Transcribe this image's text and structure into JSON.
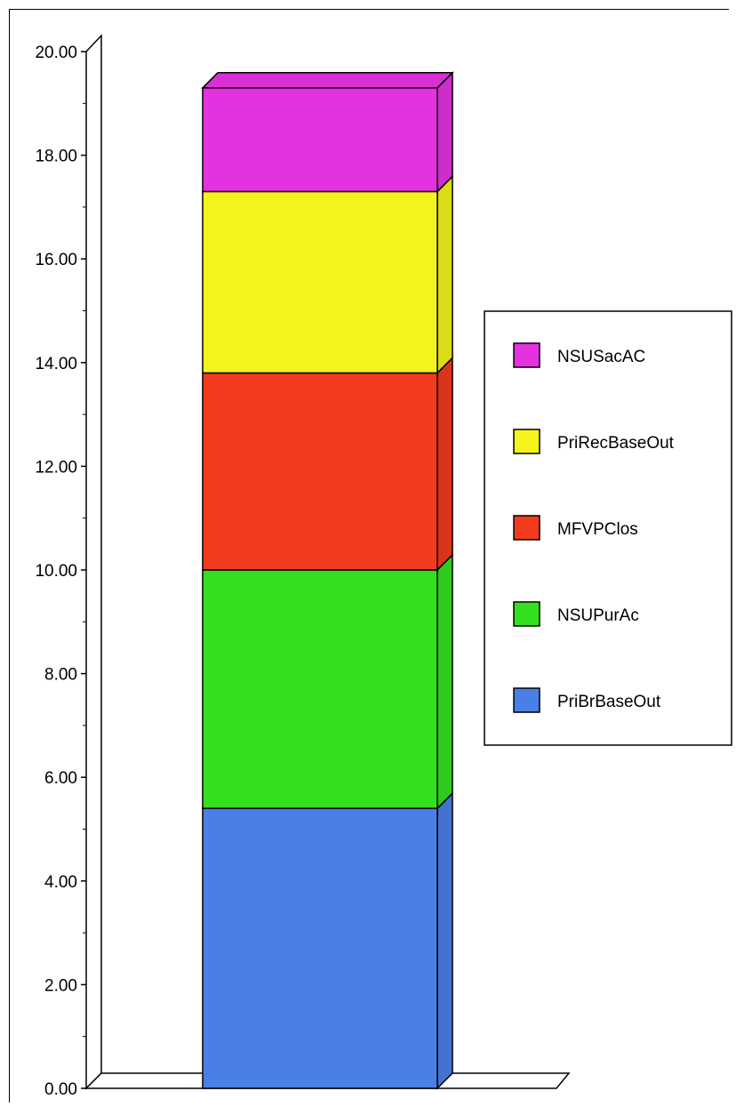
{
  "chart_data": {
    "type": "bar",
    "stacked": true,
    "three_d": true,
    "title": "",
    "xlabel": "",
    "ylabel": "",
    "ylim": [
      0,
      20
    ],
    "y_ticks": [
      "0.00",
      "2.00",
      "4.00",
      "6.00",
      "8.00",
      "10.00",
      "12.00",
      "14.00",
      "16.00",
      "18.00",
      "20.00"
    ],
    "grid": false,
    "legend_position": "right",
    "categories": [
      ""
    ],
    "series": [
      {
        "name": "PriBrBaseOut",
        "values": [
          5.4
        ],
        "color": "#4a7fe6"
      },
      {
        "name": "NSUPurAc",
        "values": [
          4.6
        ],
        "color": "#33e01f"
      },
      {
        "name": "MFVPClos",
        "values": [
          3.8
        ],
        "color": "#f23a1e"
      },
      {
        "name": "PriRecBaseOut",
        "values": [
          3.5
        ],
        "color": "#f4f41c"
      },
      {
        "name": "NSUSacAC",
        "values": [
          2.0
        ],
        "color": "#e432e0"
      }
    ],
    "legend_order": [
      "NSUSacAC",
      "PriRecBaseOut",
      "MFVPClos",
      "NSUPurAc",
      "PriBrBaseOut"
    ]
  }
}
